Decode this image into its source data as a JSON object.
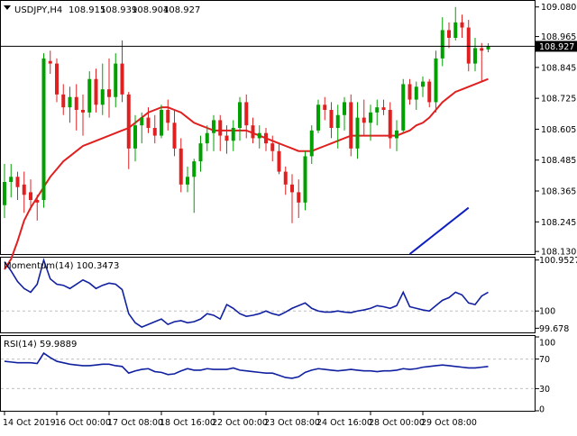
{
  "chart_data": [
    {
      "type": "candlestick",
      "symbol": "USDJPY",
      "timeframe": "H4",
      "ohlc_label": {
        "symbol_tf": "USDJPY,H4",
        "open": "108.915",
        "high": "108.939",
        "low": "108.904",
        "close": "108.927"
      },
      "current_price": "108.927",
      "ylim": [
        108.12,
        109.1
      ],
      "ytick_labels": [
        "109.080",
        "108.965",
        "108.845",
        "108.725",
        "108.605",
        "108.485",
        "108.365",
        "108.245",
        "108.130"
      ],
      "ytick_values": [
        109.08,
        108.965,
        108.845,
        108.725,
        108.605,
        108.485,
        108.365,
        108.245,
        108.13
      ],
      "colors": {
        "bull": "#00a000",
        "bear": "#e02020",
        "ma_fast": "#e02020",
        "ma_slow": "#1020c0",
        "price_line": "#000000"
      },
      "candles": [
        {
          "o": 108.31,
          "h": 108.47,
          "l": 108.26,
          "c": 108.4
        },
        {
          "o": 108.4,
          "h": 108.47,
          "l": 108.34,
          "c": 108.42
        },
        {
          "o": 108.42,
          "h": 108.44,
          "l": 108.33,
          "c": 108.38
        },
        {
          "o": 108.39,
          "h": 108.44,
          "l": 108.28,
          "c": 108.35
        },
        {
          "o": 108.36,
          "h": 108.41,
          "l": 108.29,
          "c": 108.33
        },
        {
          "o": 108.33,
          "h": 108.35,
          "l": 108.25,
          "c": 108.32
        },
        {
          "o": 108.33,
          "h": 108.9,
          "l": 108.3,
          "c": 108.88
        },
        {
          "o": 108.87,
          "h": 108.91,
          "l": 108.82,
          "c": 108.86
        },
        {
          "o": 108.86,
          "h": 108.88,
          "l": 108.71,
          "c": 108.74
        },
        {
          "o": 108.74,
          "h": 108.78,
          "l": 108.66,
          "c": 108.69
        },
        {
          "o": 108.69,
          "h": 108.77,
          "l": 108.63,
          "c": 108.73
        },
        {
          "o": 108.73,
          "h": 108.78,
          "l": 108.6,
          "c": 108.68
        },
        {
          "o": 108.68,
          "h": 108.74,
          "l": 108.58,
          "c": 108.67
        },
        {
          "o": 108.67,
          "h": 108.83,
          "l": 108.65,
          "c": 108.8
        },
        {
          "o": 108.8,
          "h": 108.84,
          "l": 108.67,
          "c": 108.7
        },
        {
          "o": 108.7,
          "h": 108.86,
          "l": 108.66,
          "c": 108.76
        },
        {
          "o": 108.76,
          "h": 108.88,
          "l": 108.65,
          "c": 108.73
        },
        {
          "o": 108.73,
          "h": 108.9,
          "l": 108.69,
          "c": 108.86
        },
        {
          "o": 108.86,
          "h": 108.95,
          "l": 108.71,
          "c": 108.74
        },
        {
          "o": 108.74,
          "h": 108.75,
          "l": 108.45,
          "c": 108.53
        },
        {
          "o": 108.53,
          "h": 108.66,
          "l": 108.48,
          "c": 108.62
        },
        {
          "o": 108.62,
          "h": 108.67,
          "l": 108.55,
          "c": 108.65
        },
        {
          "o": 108.65,
          "h": 108.69,
          "l": 108.59,
          "c": 108.61
        },
        {
          "o": 108.61,
          "h": 108.66,
          "l": 108.55,
          "c": 108.58
        },
        {
          "o": 108.58,
          "h": 108.7,
          "l": 108.57,
          "c": 108.68
        },
        {
          "o": 108.68,
          "h": 108.72,
          "l": 108.6,
          "c": 108.63
        },
        {
          "o": 108.63,
          "h": 108.68,
          "l": 108.5,
          "c": 108.53
        },
        {
          "o": 108.53,
          "h": 108.57,
          "l": 108.36,
          "c": 108.39
        },
        {
          "o": 108.39,
          "h": 108.46,
          "l": 108.36,
          "c": 108.42
        },
        {
          "o": 108.42,
          "h": 108.49,
          "l": 108.28,
          "c": 108.48
        },
        {
          "o": 108.48,
          "h": 108.58,
          "l": 108.44,
          "c": 108.55
        },
        {
          "o": 108.55,
          "h": 108.62,
          "l": 108.52,
          "c": 108.59
        },
        {
          "o": 108.59,
          "h": 108.66,
          "l": 108.52,
          "c": 108.64
        },
        {
          "o": 108.64,
          "h": 108.66,
          "l": 108.52,
          "c": 108.58
        },
        {
          "o": 108.58,
          "h": 108.62,
          "l": 108.51,
          "c": 108.56
        },
        {
          "o": 108.56,
          "h": 108.64,
          "l": 108.52,
          "c": 108.61
        },
        {
          "o": 108.61,
          "h": 108.73,
          "l": 108.56,
          "c": 108.71
        },
        {
          "o": 108.71,
          "h": 108.74,
          "l": 108.57,
          "c": 108.62
        },
        {
          "o": 108.62,
          "h": 108.65,
          "l": 108.55,
          "c": 108.57
        },
        {
          "o": 108.57,
          "h": 108.62,
          "l": 108.53,
          "c": 108.59
        },
        {
          "o": 108.59,
          "h": 108.61,
          "l": 108.52,
          "c": 108.55
        },
        {
          "o": 108.55,
          "h": 108.58,
          "l": 108.48,
          "c": 108.52
        },
        {
          "o": 108.52,
          "h": 108.55,
          "l": 108.43,
          "c": 108.44
        },
        {
          "o": 108.44,
          "h": 108.46,
          "l": 108.35,
          "c": 108.39
        },
        {
          "o": 108.39,
          "h": 108.43,
          "l": 108.24,
          "c": 108.36
        },
        {
          "o": 108.36,
          "h": 108.41,
          "l": 108.26,
          "c": 108.32
        },
        {
          "o": 108.32,
          "h": 108.52,
          "l": 108.29,
          "c": 108.5
        },
        {
          "o": 108.5,
          "h": 108.62,
          "l": 108.47,
          "c": 108.6
        },
        {
          "o": 108.6,
          "h": 108.72,
          "l": 108.59,
          "c": 108.7
        },
        {
          "o": 108.7,
          "h": 108.73,
          "l": 108.64,
          "c": 108.68
        },
        {
          "o": 108.68,
          "h": 108.71,
          "l": 108.57,
          "c": 108.61
        },
        {
          "o": 108.61,
          "h": 108.7,
          "l": 108.53,
          "c": 108.66
        },
        {
          "o": 108.66,
          "h": 108.73,
          "l": 108.6,
          "c": 108.71
        },
        {
          "o": 108.71,
          "h": 108.74,
          "l": 108.5,
          "c": 108.53
        },
        {
          "o": 108.53,
          "h": 108.71,
          "l": 108.49,
          "c": 108.65
        },
        {
          "o": 108.65,
          "h": 108.72,
          "l": 108.58,
          "c": 108.63
        },
        {
          "o": 108.63,
          "h": 108.7,
          "l": 108.56,
          "c": 108.67
        },
        {
          "o": 108.67,
          "h": 108.72,
          "l": 108.62,
          "c": 108.69
        },
        {
          "o": 108.69,
          "h": 108.72,
          "l": 108.66,
          "c": 108.68
        },
        {
          "o": 108.68,
          "h": 108.71,
          "l": 108.53,
          "c": 108.57
        },
        {
          "o": 108.57,
          "h": 108.64,
          "l": 108.52,
          "c": 108.6
        },
        {
          "o": 108.6,
          "h": 108.8,
          "l": 108.59,
          "c": 108.78
        },
        {
          "o": 108.78,
          "h": 108.8,
          "l": 108.7,
          "c": 108.72
        },
        {
          "o": 108.72,
          "h": 108.79,
          "l": 108.68,
          "c": 108.77
        },
        {
          "o": 108.77,
          "h": 108.81,
          "l": 108.73,
          "c": 108.79
        },
        {
          "o": 108.79,
          "h": 108.8,
          "l": 108.69,
          "c": 108.71
        },
        {
          "o": 108.71,
          "h": 108.91,
          "l": 108.67,
          "c": 108.88
        },
        {
          "o": 108.88,
          "h": 109.04,
          "l": 108.85,
          "c": 108.99
        },
        {
          "o": 108.99,
          "h": 109.02,
          "l": 108.92,
          "c": 108.96
        },
        {
          "o": 108.96,
          "h": 109.08,
          "l": 108.95,
          "c": 109.02
        },
        {
          "o": 109.02,
          "h": 109.05,
          "l": 108.96,
          "c": 109.0
        },
        {
          "o": 109.0,
          "h": 109.03,
          "l": 108.83,
          "c": 108.86
        },
        {
          "o": 108.86,
          "h": 108.96,
          "l": 108.83,
          "c": 108.92
        },
        {
          "o": 108.92,
          "h": 108.94,
          "l": 108.79,
          "c": 108.91
        },
        {
          "o": 108.915,
          "h": 108.939,
          "l": 108.904,
          "c": 108.927
        }
      ],
      "ma_fast": [
        108.06,
        108.1,
        108.17,
        108.25,
        108.3,
        108.34,
        108.38,
        108.42,
        108.45,
        108.48,
        108.5,
        108.52,
        108.54,
        108.55,
        108.56,
        108.57,
        108.58,
        108.59,
        108.6,
        108.61,
        108.63,
        108.65,
        108.67,
        108.68,
        108.69,
        108.69,
        108.68,
        108.67,
        108.65,
        108.63,
        108.62,
        108.61,
        108.6,
        108.6,
        108.6,
        108.6,
        108.6,
        108.6,
        108.59,
        108.58,
        108.57,
        108.56,
        108.55,
        108.54,
        108.53,
        108.52,
        108.52,
        108.52,
        108.53,
        108.54,
        108.55,
        108.56,
        108.57,
        108.58,
        108.58,
        108.58,
        108.58,
        108.58,
        108.58,
        108.58,
        108.58,
        108.59,
        108.6,
        108.62,
        108.63,
        108.65,
        108.68,
        108.71,
        108.73,
        108.75,
        108.76,
        108.77,
        108.78,
        108.79,
        108.8
      ],
      "ma_slow_points": [
        [
          62,
          108.12
        ],
        [
          63,
          108.14
        ],
        [
          64,
          108.16
        ],
        [
          65,
          108.18
        ],
        [
          66,
          108.2
        ],
        [
          67,
          108.22
        ],
        [
          68,
          108.24
        ],
        [
          69,
          108.26
        ],
        [
          70,
          108.28
        ],
        [
          71,
          108.3
        ]
      ]
    },
    {
      "type": "line",
      "indicator": "Momentum",
      "label_text": "Momentum(14) 100.3473",
      "ylim": [
        99.6,
        100.98
      ],
      "ytick_labels": [
        "100.9527",
        "100",
        "99.678"
      ],
      "ytick_values": [
        100.9527,
        100.0,
        99.678
      ],
      "color": "#1020a0",
      "values": [
        100.92,
        100.75,
        100.55,
        100.42,
        100.35,
        100.5,
        100.95,
        100.6,
        100.5,
        100.48,
        100.42,
        100.5,
        100.58,
        100.52,
        100.42,
        100.48,
        100.52,
        100.5,
        100.4,
        99.95,
        99.78,
        99.7,
        99.75,
        99.8,
        99.85,
        99.75,
        99.8,
        99.82,
        99.78,
        99.8,
        99.85,
        99.95,
        99.92,
        99.85,
        100.12,
        100.05,
        99.95,
        99.9,
        99.92,
        99.95,
        100.0,
        99.95,
        99.92,
        99.98,
        100.05,
        100.1,
        100.15,
        100.05,
        100.0,
        99.98,
        99.98,
        100.0,
        99.98,
        99.97,
        100.0,
        100.02,
        100.05,
        100.1,
        100.08,
        100.05,
        100.1,
        100.35,
        100.08,
        100.05,
        100.02,
        100.0,
        100.1,
        100.2,
        100.25,
        100.35,
        100.3,
        100.15,
        100.12,
        100.28,
        100.35
      ]
    },
    {
      "type": "line",
      "indicator": "RSI",
      "label_text": "RSI(14) 59.9889",
      "ylim": [
        0,
        100
      ],
      "ytick_labels": [
        "100",
        "70",
        "30",
        "0"
      ],
      "ytick_values": [
        100,
        70,
        30,
        0
      ],
      "color": "#1020a0",
      "values": [
        67,
        66,
        65,
        65,
        65,
        64,
        78,
        72,
        67,
        65,
        63,
        62,
        61,
        61,
        62,
        63,
        63,
        61,
        60,
        51,
        54,
        56,
        57,
        53,
        52,
        49,
        50,
        54,
        57,
        55,
        55,
        57,
        56,
        56,
        56,
        58,
        55,
        54,
        53,
        52,
        51,
        51,
        48,
        45,
        44,
        46,
        52,
        55,
        57,
        56,
        55,
        54,
        55,
        56,
        55,
        54,
        54,
        53,
        54,
        54,
        55,
        57,
        56,
        57,
        59,
        60,
        61,
        62,
        61,
        60,
        59,
        58,
        58,
        59,
        60
      ]
    },
    {
      "type": "x_axis",
      "labels": [
        "14 Oct 2019",
        "16 Oct 00:00",
        "17 Oct 08:00",
        "18 Oct 16:00",
        "22 Oct 00:00",
        "23 Oct 08:00",
        "24 Oct 16:00",
        "28 Oct 00:00",
        "29 Oct 08:00"
      ],
      "label_bar_index": [
        0,
        8,
        16,
        24,
        32,
        40,
        48,
        56,
        64
      ]
    }
  ]
}
